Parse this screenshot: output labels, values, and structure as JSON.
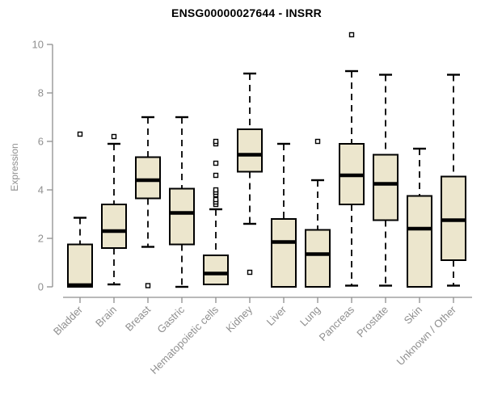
{
  "chart_data": {
    "type": "boxplot",
    "title": "ENSG00000027644 - INSRR",
    "ylabel": "Expression",
    "xlabel": "",
    "ylim": [
      0,
      10
    ],
    "yticks": [
      0,
      2,
      4,
      6,
      8,
      10
    ],
    "grid": false,
    "legend": "none",
    "colors": {
      "box_fill": "#ece6cd",
      "box_stroke": "#000000",
      "median": "#000000",
      "axis": "#8f8f8f",
      "tick_label": "#8f8f8f",
      "title": "#000000",
      "background": "#ffffff"
    },
    "categories": [
      "Bladder",
      "Brain",
      "Breast",
      "Gastric",
      "Hematopoietic cells",
      "Kidney",
      "Liver",
      "Lung",
      "Pancreas",
      "Prostate",
      "Skin",
      "Unknown / Other"
    ],
    "series": [
      {
        "category": "Bladder",
        "q1": 0.0,
        "median": 0.07,
        "q3": 1.75,
        "whisker_low": 0.0,
        "whisker_high": 2.85,
        "outliers": [
          6.3
        ]
      },
      {
        "category": "Brain",
        "q1": 1.6,
        "median": 2.3,
        "q3": 3.4,
        "whisker_low": 0.1,
        "whisker_high": 5.9,
        "outliers": [
          6.2
        ]
      },
      {
        "category": "Breast",
        "q1": 3.65,
        "median": 4.4,
        "q3": 5.35,
        "whisker_low": 1.65,
        "whisker_high": 7.0,
        "outliers": [
          0.05
        ]
      },
      {
        "category": "Gastric",
        "q1": 1.75,
        "median": 3.05,
        "q3": 4.05,
        "whisker_low": 0.0,
        "whisker_high": 7.0,
        "outliers": []
      },
      {
        "category": "Hematopoietic cells",
        "q1": 0.1,
        "median": 0.55,
        "q3": 1.3,
        "whisker_low": 0.1,
        "whisker_high": 3.2,
        "outliers": [
          3.4,
          3.5,
          3.6,
          3.8,
          3.9,
          4.0,
          4.6,
          5.1,
          5.9,
          6.0
        ]
      },
      {
        "category": "Kidney",
        "q1": 4.75,
        "median": 5.45,
        "q3": 6.5,
        "whisker_low": 2.6,
        "whisker_high": 8.8,
        "outliers": [
          0.6
        ]
      },
      {
        "category": "Liver",
        "q1": 0.0,
        "median": 1.85,
        "q3": 2.8,
        "whisker_low": 0.0,
        "whisker_high": 5.9,
        "outliers": []
      },
      {
        "category": "Lung",
        "q1": 0.0,
        "median": 1.35,
        "q3": 2.35,
        "whisker_low": 0.0,
        "whisker_high": 4.4,
        "outliers": [
          6.0
        ]
      },
      {
        "category": "Pancreas",
        "q1": 3.4,
        "median": 4.6,
        "q3": 5.9,
        "whisker_low": 0.05,
        "whisker_high": 8.9,
        "outliers": [
          10.4
        ]
      },
      {
        "category": "Prostate",
        "q1": 2.75,
        "median": 4.25,
        "q3": 5.45,
        "whisker_low": 0.05,
        "whisker_high": 8.75,
        "outliers": []
      },
      {
        "category": "Skin",
        "q1": 0.0,
        "median": 2.4,
        "q3": 3.75,
        "whisker_low": 0.0,
        "whisker_high": 5.7,
        "outliers": []
      },
      {
        "category": "Unknown / Other",
        "q1": 1.1,
        "median": 2.75,
        "q3": 4.55,
        "whisker_low": 0.05,
        "whisker_high": 8.75,
        "outliers": []
      }
    ]
  }
}
